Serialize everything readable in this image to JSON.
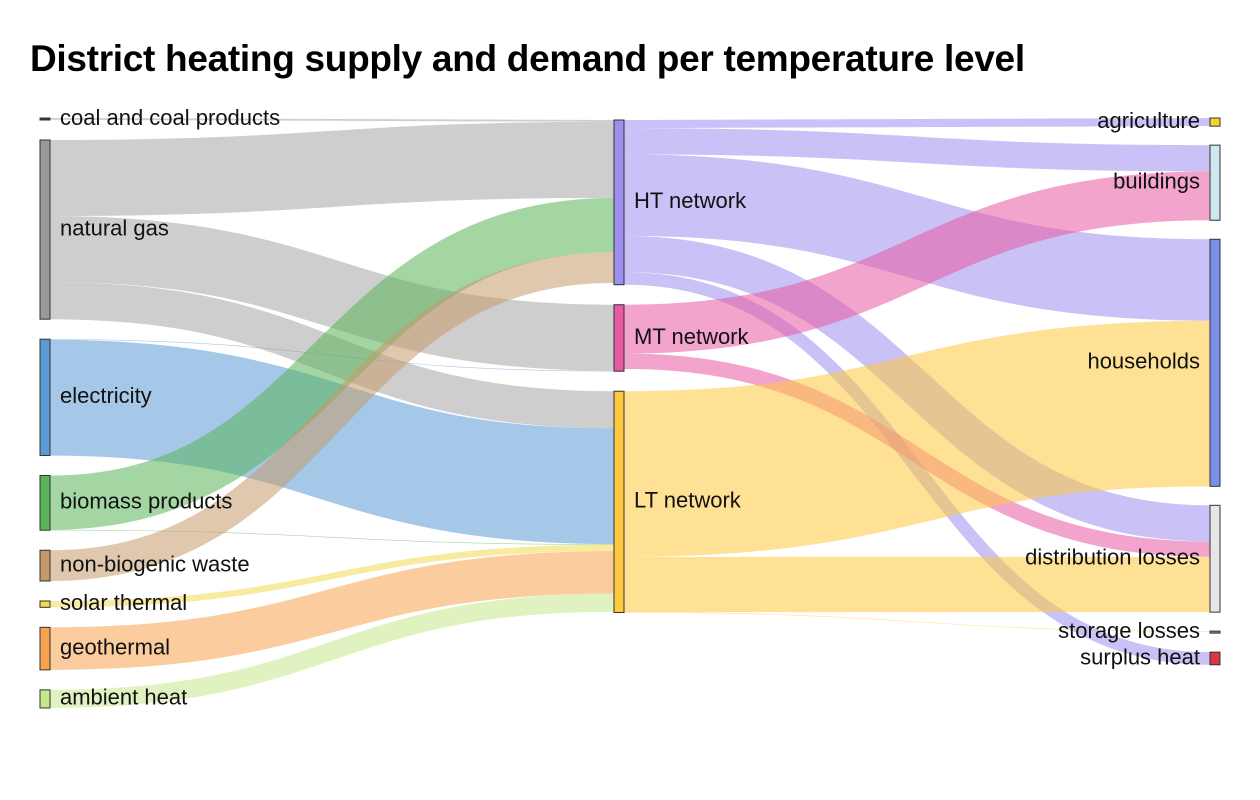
{
  "page": {
    "title": "District heating supply and demand per temperature level"
  },
  "chart_data": {
    "type": "sankey",
    "title": "District heating supply and demand per temperature level",
    "units": "",
    "nodes": [
      {
        "id": "coal",
        "label": "coal and coal products",
        "color": "#333333",
        "column": 0
      },
      {
        "id": "gas",
        "label": "natural gas",
        "color": "#999999",
        "column": 0
      },
      {
        "id": "elec",
        "label": "electricity",
        "color": "#5b9bd5",
        "column": 0
      },
      {
        "id": "bio",
        "label": "biomass products",
        "color": "#5ab55a",
        "column": 0
      },
      {
        "id": "waste",
        "label": "non-biogenic waste",
        "color": "#c49a6c",
        "column": 0
      },
      {
        "id": "solar",
        "label": "solar thermal",
        "color": "#f2d94e",
        "column": 0
      },
      {
        "id": "geo",
        "label": "geothermal",
        "color": "#f7a24f",
        "column": 0
      },
      {
        "id": "amb",
        "label": "ambient heat",
        "color": "#c5e88a",
        "column": 0
      },
      {
        "id": "ht",
        "label": "HT network",
        "color": "#9f8fef",
        "column": 1
      },
      {
        "id": "mt",
        "label": "MT network",
        "color": "#e859a3",
        "column": 1
      },
      {
        "id": "lt",
        "label": "LT network",
        "color": "#ffc940",
        "column": 1
      },
      {
        "id": "agri",
        "label": "agriculture",
        "color": "#f6d42f",
        "column": 2
      },
      {
        "id": "bldg",
        "label": "buildings",
        "color": "#cde8ef",
        "column": 2
      },
      {
        "id": "hh",
        "label": "households",
        "color": "#7b8fe8",
        "column": 2
      },
      {
        "id": "dloss",
        "label": "distribution losses",
        "color": "#e6e6e6",
        "column": 2
      },
      {
        "id": "sloss",
        "label": "storage losses",
        "color": "#888888",
        "column": 2
      },
      {
        "id": "surplus",
        "label": "surplus heat",
        "color": "#dd3344",
        "column": 2
      }
    ],
    "links": [
      {
        "source": "coal",
        "target": "ht",
        "value": 2,
        "color": "#a6a6a6"
      },
      {
        "source": "gas",
        "target": "ht",
        "value": 84,
        "color": "#a6a6a6"
      },
      {
        "source": "gas",
        "target": "mt",
        "value": 73,
        "color": "#a6a6a6"
      },
      {
        "source": "gas",
        "target": "lt",
        "value": 41,
        "color": "#a6a6a6"
      },
      {
        "source": "elec",
        "target": "mt",
        "value": 0.5,
        "color": "#5b9bd5"
      },
      {
        "source": "elec",
        "target": "lt",
        "value": 128,
        "color": "#5b9bd5"
      },
      {
        "source": "bio",
        "target": "ht",
        "value": 60,
        "color": "#5ab55a"
      },
      {
        "source": "bio",
        "target": "lt",
        "value": 0.5,
        "color": "#5ab55a"
      },
      {
        "source": "waste",
        "target": "ht",
        "value": 34,
        "color": "#c49a6c"
      },
      {
        "source": "solar",
        "target": "lt",
        "value": 7,
        "color": "#f2d94e"
      },
      {
        "source": "geo",
        "target": "lt",
        "value": 47,
        "color": "#f7a24f"
      },
      {
        "source": "amb",
        "target": "lt",
        "value": 20,
        "color": "#c5e88a"
      },
      {
        "source": "ht",
        "target": "agri",
        "value": 9,
        "color": "#9f8fef"
      },
      {
        "source": "ht",
        "target": "bldg",
        "value": 29,
        "color": "#9f8fef"
      },
      {
        "source": "ht",
        "target": "hh",
        "value": 90,
        "color": "#9f8fef"
      },
      {
        "source": "ht",
        "target": "dloss",
        "value": 40,
        "color": "#9f8fef"
      },
      {
        "source": "ht",
        "target": "surplus",
        "value": 14,
        "color": "#9f8fef"
      },
      {
        "source": "mt",
        "target": "bldg",
        "value": 54,
        "color": "#e859a3"
      },
      {
        "source": "mt",
        "target": "dloss",
        "value": 17,
        "color": "#e859a3"
      },
      {
        "source": "lt",
        "target": "hh",
        "value": 183,
        "color": "#ffc940"
      },
      {
        "source": "lt",
        "target": "dloss",
        "value": 61,
        "color": "#ffc940"
      },
      {
        "source": "lt",
        "target": "sloss",
        "value": 0.5,
        "color": "#ffc940"
      }
    ]
  }
}
